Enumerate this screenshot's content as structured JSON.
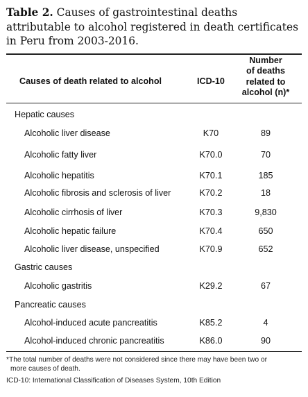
{
  "caption": {
    "lead": "Table 2.",
    "text": " Causes of gastrointestinal deaths attributable to alcohol registered in death certificates in Peru from 2003-2016."
  },
  "headers": {
    "cause": "Causes of death related to alcohol",
    "icd": "ICD-10",
    "n_line1": "Number",
    "n_line2": "of deaths",
    "n_line3": "related to",
    "n_line4": "alcohol (n)*"
  },
  "groups": [
    {
      "label": "Hepatic causes",
      "rows": [
        {
          "cause": "Alcoholic liver disease",
          "icd": "K70",
          "n": "89"
        },
        {
          "cause": "Alcoholic fatty liver",
          "icd": "K70.0",
          "n": "70"
        },
        {
          "cause": "Alcoholic hepatitis",
          "icd": "K70.1",
          "n": "185"
        },
        {
          "cause": "Alcoholic fibrosis and sclerosis of liver",
          "icd": "K70.2",
          "n": "18"
        },
        {
          "cause": "Alcoholic cirrhosis of liver",
          "icd": "K70.3",
          "n": "9,830"
        },
        {
          "cause": "Alcoholic hepatic failure",
          "icd": "K70.4",
          "n": "650"
        },
        {
          "cause": "Alcoholic liver disease, unspecified",
          "icd": "K70.9",
          "n": "652"
        }
      ]
    },
    {
      "label": "Gastric causes",
      "rows": [
        {
          "cause": "Alcoholic gastritis",
          "icd": "K29.2",
          "n": "67"
        }
      ]
    },
    {
      "label": "Pancreatic causes",
      "rows": [
        {
          "cause": "Alcohol-induced acute pancreatitis",
          "icd": "K85.2",
          "n": "4"
        },
        {
          "cause": "Alcohol-induced chronic pancreatitis",
          "icd": "K86.0",
          "n": "90"
        }
      ]
    }
  ],
  "footnotes": {
    "note1_line1": "*The total number of deaths were not considered since there may have been two or",
    "note1_line2": "more causes of death.",
    "note2": "ICD-10: International Classification of Diseases System, 10th Edition"
  }
}
